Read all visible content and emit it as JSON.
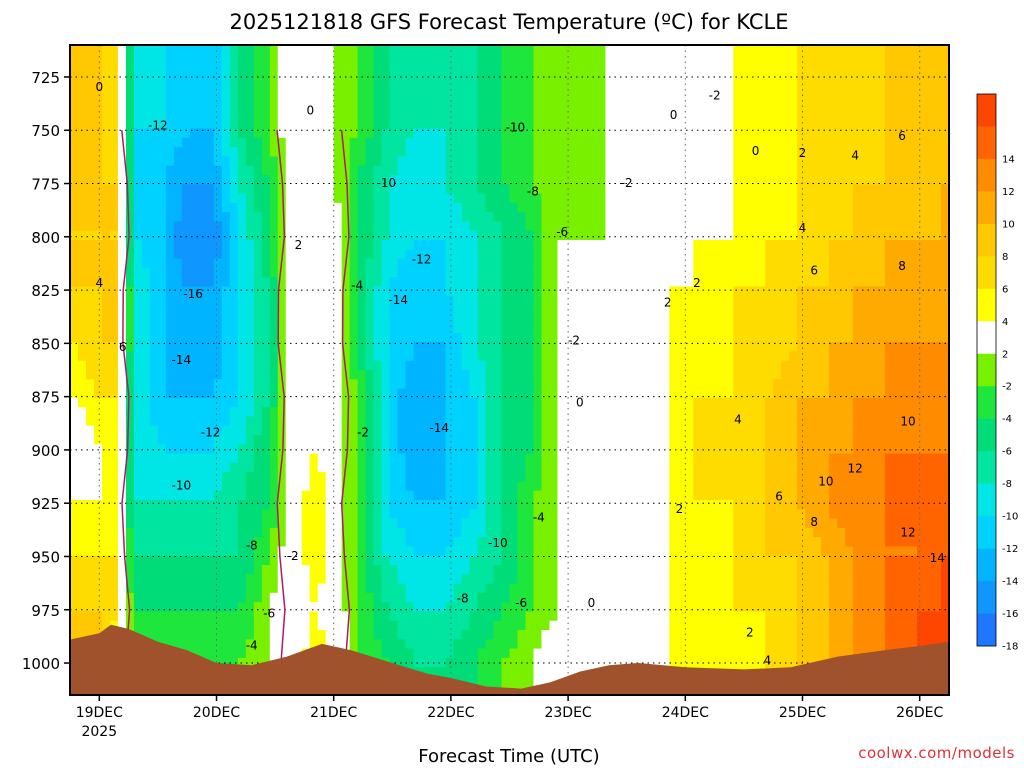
{
  "chart_data": {
    "type": "heatmap",
    "title": "2025121818 GFS Forecast Temperature (ºC) for KCLE",
    "xlabel": "Forecast Time (UTC)",
    "ylabel": "",
    "credit": "coolwx.com/models",
    "x_ticks": [
      {
        "label": "19DEC",
        "sub": "2025",
        "day": 19
      },
      {
        "label": "20DEC",
        "sub": "",
        "day": 20
      },
      {
        "label": "21DEC",
        "sub": "",
        "day": 21
      },
      {
        "label": "22DEC",
        "sub": "",
        "day": 22
      },
      {
        "label": "23DEC",
        "sub": "",
        "day": 23
      },
      {
        "label": "24DEC",
        "sub": "",
        "day": 24
      },
      {
        "label": "25DEC",
        "sub": "",
        "day": 25
      },
      {
        "label": "26DEC",
        "sub": "",
        "day": 26
      }
    ],
    "xlim_days": [
      18.75,
      26.25
    ],
    "y_ticks": [
      725,
      750,
      775,
      800,
      825,
      850,
      875,
      900,
      925,
      950,
      975,
      1000
    ],
    "ylim_hpa": [
      1015,
      710
    ],
    "grid": true,
    "colorbar": {
      "units": "ºC",
      "levels": [
        {
          "lo": -20,
          "hi": -18,
          "color": "#1e78ff",
          "label": "-18"
        },
        {
          "lo": -18,
          "hi": -16,
          "color": "#0f96ff",
          "label": "-16"
        },
        {
          "lo": -16,
          "hi": -14,
          "color": "#00b4ff",
          "label": "-14"
        },
        {
          "lo": -14,
          "hi": -12,
          "color": "#00d2ff",
          "label": "-12"
        },
        {
          "lo": -12,
          "hi": -10,
          "color": "#00e6e6",
          "label": "-10"
        },
        {
          "lo": -10,
          "hi": -8,
          "color": "#00e6a0",
          "label": "-8"
        },
        {
          "lo": -8,
          "hi": -6,
          "color": "#00dc78",
          "label": "-6"
        },
        {
          "lo": -6,
          "hi": -4,
          "color": "#1ee63c",
          "label": "-4"
        },
        {
          "lo": -4,
          "hi": -2,
          "color": "#78f000",
          "label": "-2"
        },
        {
          "lo": -2,
          "hi": 2,
          "color": "#ffffff",
          "label": "2"
        },
        {
          "lo": 2,
          "hi": 4,
          "color": "#ffff00",
          "label": "4"
        },
        {
          "lo": 4,
          "hi": 6,
          "color": "#ffdc00",
          "label": "6"
        },
        {
          "lo": 6,
          "hi": 8,
          "color": "#ffc800",
          "label": "8"
        },
        {
          "lo": 8,
          "hi": 10,
          "color": "#ffaa00",
          "label": "10"
        },
        {
          "lo": 10,
          "hi": 12,
          "color": "#ff8c00",
          "label": "12"
        },
        {
          "lo": 12,
          "hi": 14,
          "color": "#ff6400",
          "label": "14"
        },
        {
          "lo": 14,
          "hi": 16,
          "color": "#ff4600",
          "label": ""
        }
      ]
    },
    "colors": {
      "terrain": "#a0522d",
      "freezing_line": "#b0186c",
      "contour_line": "#000000"
    },
    "surface_pressure": [
      {
        "day": 18.75,
        "hpa": 989
      },
      {
        "day": 19.0,
        "hpa": 986
      },
      {
        "day": 19.1,
        "hpa": 982
      },
      {
        "day": 19.25,
        "hpa": 984
      },
      {
        "day": 19.5,
        "hpa": 990
      },
      {
        "day": 19.75,
        "hpa": 994
      },
      {
        "day": 20.0,
        "hpa": 1000
      },
      {
        "day": 20.3,
        "hpa": 1001
      },
      {
        "day": 20.6,
        "hpa": 997
      },
      {
        "day": 20.9,
        "hpa": 991
      },
      {
        "day": 21.15,
        "hpa": 994
      },
      {
        "day": 21.5,
        "hpa": 1000
      },
      {
        "day": 21.8,
        "hpa": 1005
      },
      {
        "day": 22.0,
        "hpa": 1007
      },
      {
        "day": 22.3,
        "hpa": 1011
      },
      {
        "day": 22.6,
        "hpa": 1012
      },
      {
        "day": 22.85,
        "hpa": 1009
      },
      {
        "day": 23.1,
        "hpa": 1004
      },
      {
        "day": 23.35,
        "hpa": 1001
      },
      {
        "day": 23.6,
        "hpa": 1000
      },
      {
        "day": 24.0,
        "hpa": 1002
      },
      {
        "day": 24.5,
        "hpa": 1003
      },
      {
        "day": 24.9,
        "hpa": 1002
      },
      {
        "day": 25.3,
        "hpa": 997
      },
      {
        "day": 25.7,
        "hpa": 994
      },
      {
        "day": 26.0,
        "hpa": 992
      },
      {
        "day": 26.25,
        "hpa": 990
      }
    ],
    "temperature_columns": [
      {
        "day": 18.8,
        "temps": [
          6,
          6,
          4,
          2,
          0,
          2,
          4,
          6,
          6,
          6,
          6
        ]
      },
      {
        "day": 19.0,
        "temps": [
          6,
          6,
          4,
          2,
          2,
          4,
          6,
          6,
          6,
          6,
          6
        ]
      },
      {
        "day": 19.15,
        "temps": [
          2,
          4,
          4,
          2,
          2,
          4,
          6,
          6,
          6,
          6,
          4
        ]
      },
      {
        "day": 19.3,
        "temps": [
          -4,
          -6,
          -8,
          -10,
          -10,
          -10,
          -10,
          -10,
          -12,
          -12,
          -12
        ]
      },
      {
        "day": 19.55,
        "temps": [
          -4,
          -6,
          -8,
          -10,
          -12,
          -14,
          -14,
          -14,
          -14,
          -14,
          -12
        ]
      },
      {
        "day": 19.75,
        "temps": [
          -4,
          -6,
          -8,
          -10,
          -12,
          -14,
          -16,
          -16,
          -18,
          -16,
          -14
        ]
      },
      {
        "day": 19.95,
        "temps": [
          -4,
          -6,
          -8,
          -10,
          -12,
          -14,
          -16,
          -16,
          -18,
          -16,
          -14
        ]
      },
      {
        "day": 20.2,
        "temps": [
          -4,
          -6,
          -8,
          -8,
          -10,
          -12,
          -12,
          -12,
          -12,
          -10,
          -8
        ]
      },
      {
        "day": 20.45,
        "temps": [
          -2,
          -2,
          -4,
          -6,
          -6,
          -8,
          -8,
          -8,
          -6,
          -6,
          -4
        ]
      },
      {
        "day": 20.65,
        "temps": [
          0,
          0,
          0,
          0,
          0,
          0,
          0,
          0,
          0,
          0,
          0
        ]
      },
      {
        "day": 20.85,
        "temps": [
          4,
          2,
          4,
          4,
          2,
          2,
          2,
          2,
          2,
          2,
          0
        ]
      },
      {
        "day": 21.0,
        "temps": [
          2,
          0,
          0,
          0,
          0,
          0,
          0,
          0,
          0,
          -2,
          -2
        ]
      },
      {
        "day": 21.2,
        "temps": [
          -4,
          -4,
          -4,
          -4,
          -4,
          -4,
          -6,
          -6,
          -6,
          -6,
          -4
        ]
      },
      {
        "day": 21.45,
        "temps": [
          -6,
          -8,
          -10,
          -12,
          -12,
          -12,
          -12,
          -12,
          -10,
          -10,
          -8
        ]
      },
      {
        "day": 21.7,
        "temps": [
          -8,
          -10,
          -12,
          -14,
          -16,
          -16,
          -14,
          -14,
          -12,
          -12,
          -10
        ]
      },
      {
        "day": 21.95,
        "temps": [
          -8,
          -10,
          -12,
          -14,
          -14,
          -14,
          -14,
          -12,
          -12,
          -10,
          -10
        ]
      },
      {
        "day": 22.2,
        "temps": [
          -6,
          -8,
          -10,
          -12,
          -12,
          -12,
          -10,
          -10,
          -10,
          -8,
          -8
        ]
      },
      {
        "day": 22.45,
        "temps": [
          -4,
          -6,
          -8,
          -8,
          -8,
          -8,
          -8,
          -8,
          -8,
          -6,
          -6
        ]
      },
      {
        "day": 22.7,
        "temps": [
          -2,
          -4,
          -4,
          -4,
          -6,
          -6,
          -6,
          -6,
          -6,
          -4,
          -4
        ]
      },
      {
        "day": 22.9,
        "temps": [
          0,
          -2,
          -2,
          -2,
          -2,
          -2,
          -2,
          -2,
          -2,
          -2,
          -2
        ]
      },
      {
        "day": 23.1,
        "temps": [
          0,
          0,
          0,
          0,
          -2,
          -2,
          -2,
          -2,
          -2,
          -4,
          -4
        ]
      },
      {
        "day": 23.35,
        "temps": [
          0,
          0,
          0,
          0,
          0,
          0,
          -2,
          -2,
          -2,
          -2,
          -2
        ]
      },
      {
        "day": 23.6,
        "temps": [
          0,
          0,
          0,
          0,
          0,
          0,
          0,
          0,
          -2,
          -2,
          -2
        ]
      },
      {
        "day": 23.85,
        "temps": [
          2,
          2,
          2,
          2,
          2,
          2,
          2,
          2,
          0,
          0,
          0
        ]
      },
      {
        "day": 24.1,
        "temps": [
          2,
          2,
          2,
          4,
          4,
          4,
          2,
          2,
          2,
          0,
          0
        ]
      },
      {
        "day": 24.4,
        "temps": [
          2,
          4,
          4,
          4,
          4,
          4,
          4,
          4,
          2,
          2,
          2
        ]
      },
      {
        "day": 24.7,
        "temps": [
          4,
          4,
          6,
          6,
          6,
          6,
          4,
          4,
          4,
          2,
          2
        ]
      },
      {
        "day": 24.95,
        "temps": [
          6,
          6,
          6,
          8,
          8,
          8,
          6,
          6,
          4,
          4,
          4
        ]
      },
      {
        "day": 25.2,
        "temps": [
          8,
          8,
          8,
          10,
          10,
          8,
          8,
          6,
          6,
          4,
          4
        ]
      },
      {
        "day": 25.45,
        "temps": [
          10,
          10,
          10,
          12,
          10,
          10,
          8,
          8,
          6,
          6,
          4
        ]
      },
      {
        "day": 25.7,
        "temps": [
          12,
          12,
          12,
          12,
          12,
          10,
          10,
          8,
          8,
          6,
          6
        ]
      },
      {
        "day": 25.95,
        "temps": [
          14,
          14,
          12,
          12,
          12,
          10,
          10,
          8,
          8,
          6,
          6
        ]
      },
      {
        "day": 26.2,
        "temps": [
          14,
          14,
          14,
          12,
          12,
          10,
          10,
          8,
          8,
          8,
          6
        ]
      }
    ],
    "temperature_levels_hpa": [
      1000,
      975,
      950,
      925,
      900,
      875,
      850,
      825,
      800,
      775,
      750
    ],
    "contour_labels": [
      {
        "text": "0",
        "day": 19.0,
        "hpa": 730
      },
      {
        "text": "-12",
        "day": 19.5,
        "hpa": 748
      },
      {
        "text": "4",
        "day": 19.0,
        "hpa": 822
      },
      {
        "text": "6",
        "day": 19.2,
        "hpa": 852
      },
      {
        "text": "-16",
        "day": 19.8,
        "hpa": 827
      },
      {
        "text": "-14",
        "day": 19.7,
        "hpa": 858
      },
      {
        "text": "-12",
        "day": 19.95,
        "hpa": 892
      },
      {
        "text": "-10",
        "day": 19.7,
        "hpa": 917
      },
      {
        "text": "-8",
        "day": 20.3,
        "hpa": 945
      },
      {
        "text": "-6",
        "day": 20.45,
        "hpa": 977
      },
      {
        "text": "-4",
        "day": 20.3,
        "hpa": 992
      },
      {
        "text": "0",
        "day": 20.8,
        "hpa": 741
      },
      {
        "text": "2",
        "day": 20.7,
        "hpa": 804
      },
      {
        "text": "-2",
        "day": 20.65,
        "hpa": 950
      },
      {
        "text": "-4",
        "day": 21.2,
        "hpa": 823
      },
      {
        "text": "-2",
        "day": 21.25,
        "hpa": 892
      },
      {
        "text": "-10",
        "day": 21.45,
        "hpa": 775
      },
      {
        "text": "-12",
        "day": 21.75,
        "hpa": 811
      },
      {
        "text": "-14",
        "day": 21.55,
        "hpa": 830
      },
      {
        "text": "-14",
        "day": 21.9,
        "hpa": 890
      },
      {
        "text": "-10",
        "day": 22.55,
        "hpa": 749
      },
      {
        "text": "-8",
        "day": 22.7,
        "hpa": 779
      },
      {
        "text": "-6",
        "day": 22.95,
        "hpa": 798
      },
      {
        "text": "-2",
        "day": 23.05,
        "hpa": 849
      },
      {
        "text": "0",
        "day": 23.1,
        "hpa": 878
      },
      {
        "text": "-4",
        "day": 22.75,
        "hpa": 932
      },
      {
        "text": "-10",
        "day": 22.4,
        "hpa": 944
      },
      {
        "text": "-8",
        "day": 22.1,
        "hpa": 970
      },
      {
        "text": "-6",
        "day": 22.6,
        "hpa": 972
      },
      {
        "text": "0",
        "day": 23.2,
        "hpa": 972
      },
      {
        "text": "-2",
        "day": 23.5,
        "hpa": 775
      },
      {
        "text": "0",
        "day": 23.9,
        "hpa": 743
      },
      {
        "text": "-2",
        "day": 24.25,
        "hpa": 734
      },
      {
        "text": "0",
        "day": 24.6,
        "hpa": 760
      },
      {
        "text": "2",
        "day": 25.0,
        "hpa": 761
      },
      {
        "text": "4",
        "day": 25.45,
        "hpa": 762
      },
      {
        "text": "6",
        "day": 25.85,
        "hpa": 753
      },
      {
        "text": "4",
        "day": 25.0,
        "hpa": 796
      },
      {
        "text": "6",
        "day": 25.1,
        "hpa": 816
      },
      {
        "text": "8",
        "day": 25.85,
        "hpa": 814
      },
      {
        "text": "2",
        "day": 24.1,
        "hpa": 822
      },
      {
        "text": "2",
        "day": 23.85,
        "hpa": 831
      },
      {
        "text": "4",
        "day": 24.45,
        "hpa": 886
      },
      {
        "text": "2",
        "day": 23.95,
        "hpa": 928
      },
      {
        "text": "6",
        "day": 24.8,
        "hpa": 922
      },
      {
        "text": "8",
        "day": 25.1,
        "hpa": 934
      },
      {
        "text": "10",
        "day": 25.2,
        "hpa": 915
      },
      {
        "text": "12",
        "day": 25.45,
        "hpa": 909
      },
      {
        "text": "10",
        "day": 25.9,
        "hpa": 887
      },
      {
        "text": "12",
        "day": 25.9,
        "hpa": 939
      },
      {
        "text": "14",
        "day": 26.15,
        "hpa": 951
      },
      {
        "text": "2",
        "day": 24.55,
        "hpa": 986
      },
      {
        "text": "4",
        "day": 24.7,
        "hpa": 999
      }
    ]
  }
}
